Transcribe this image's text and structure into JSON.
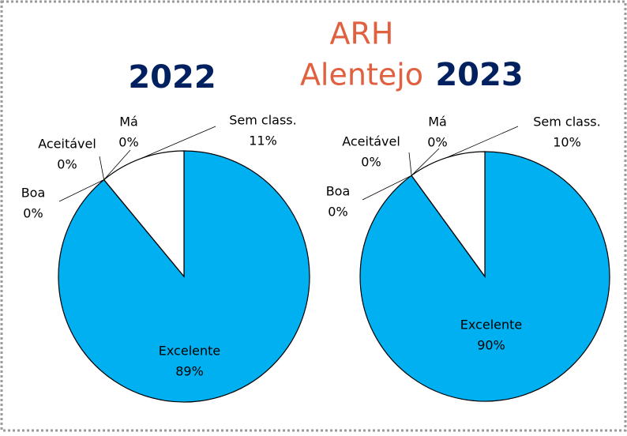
{
  "heading": {
    "line1": "ARH",
    "line2": "Alentejo"
  },
  "chart_data": [
    {
      "type": "pie",
      "title": "2022",
      "categories": [
        "Excelente",
        "Boa",
        "Aceitável",
        "Má",
        "Sem class."
      ],
      "values": [
        89,
        0,
        0,
        0,
        11
      ],
      "value_labels": [
        "89%",
        "0%",
        "0%",
        "0%",
        "11%"
      ],
      "colors": [
        "#00b0f0",
        "#ffffff",
        "#ffffff",
        "#ffffff",
        "#ffffff"
      ]
    },
    {
      "type": "pie",
      "title": "2023",
      "categories": [
        "Excelente",
        "Boa",
        "Aceitável",
        "Má",
        "Sem class."
      ],
      "values": [
        90,
        0,
        0,
        0,
        10
      ],
      "value_labels": [
        "90%",
        "0%",
        "0%",
        "0%",
        "10%"
      ],
      "colors": [
        "#00b0f0",
        "#ffffff",
        "#ffffff",
        "#ffffff",
        "#ffffff"
      ]
    }
  ]
}
